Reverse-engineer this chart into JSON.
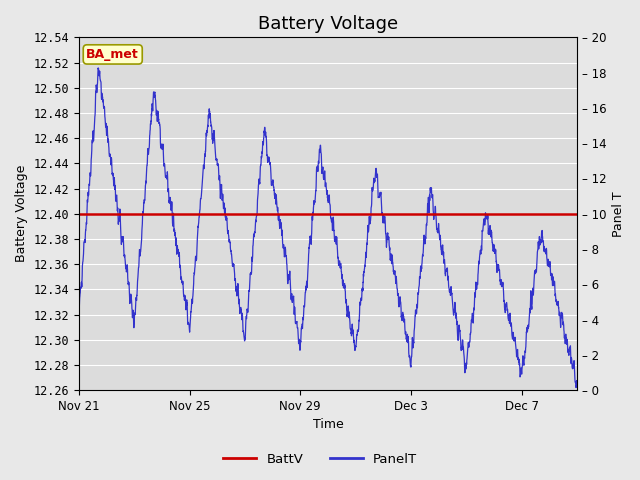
{
  "title": "Battery Voltage",
  "xlabel": "Time",
  "ylabel_left": "Battery Voltage",
  "ylabel_right": "Panel T",
  "ylim_left": [
    12.26,
    12.54
  ],
  "ylim_right": [
    0,
    20
  ],
  "yticks_left": [
    12.26,
    12.28,
    12.3,
    12.32,
    12.34,
    12.36,
    12.38,
    12.4,
    12.42,
    12.44,
    12.46,
    12.48,
    12.5,
    12.52,
    12.54
  ],
  "yticks_right": [
    0,
    2,
    4,
    6,
    8,
    10,
    12,
    14,
    16,
    18,
    20
  ],
  "xtick_labels": [
    "Nov 21",
    "Nov 25",
    "Nov 29",
    "Dec 3",
    "Dec 7"
  ],
  "xtick_positions": [
    0,
    4,
    8,
    12,
    16
  ],
  "xlim": [
    0,
    18
  ],
  "batt_v": 12.4,
  "batt_color": "#cc0000",
  "panel_color": "#3333cc",
  "fig_bg_color": "#e8e8e8",
  "plot_bg_color": "#dcdcdc",
  "grid_color": "#ffffff",
  "annotation_text": "BA_met",
  "annotation_bg": "#ffffcc",
  "annotation_border": "#999900",
  "annotation_text_color": "#cc0000",
  "legend_entries": [
    "BattV",
    "PanelT"
  ],
  "title_fontsize": 13,
  "label_fontsize": 9,
  "tick_fontsize": 8.5,
  "line_width": 1.2
}
